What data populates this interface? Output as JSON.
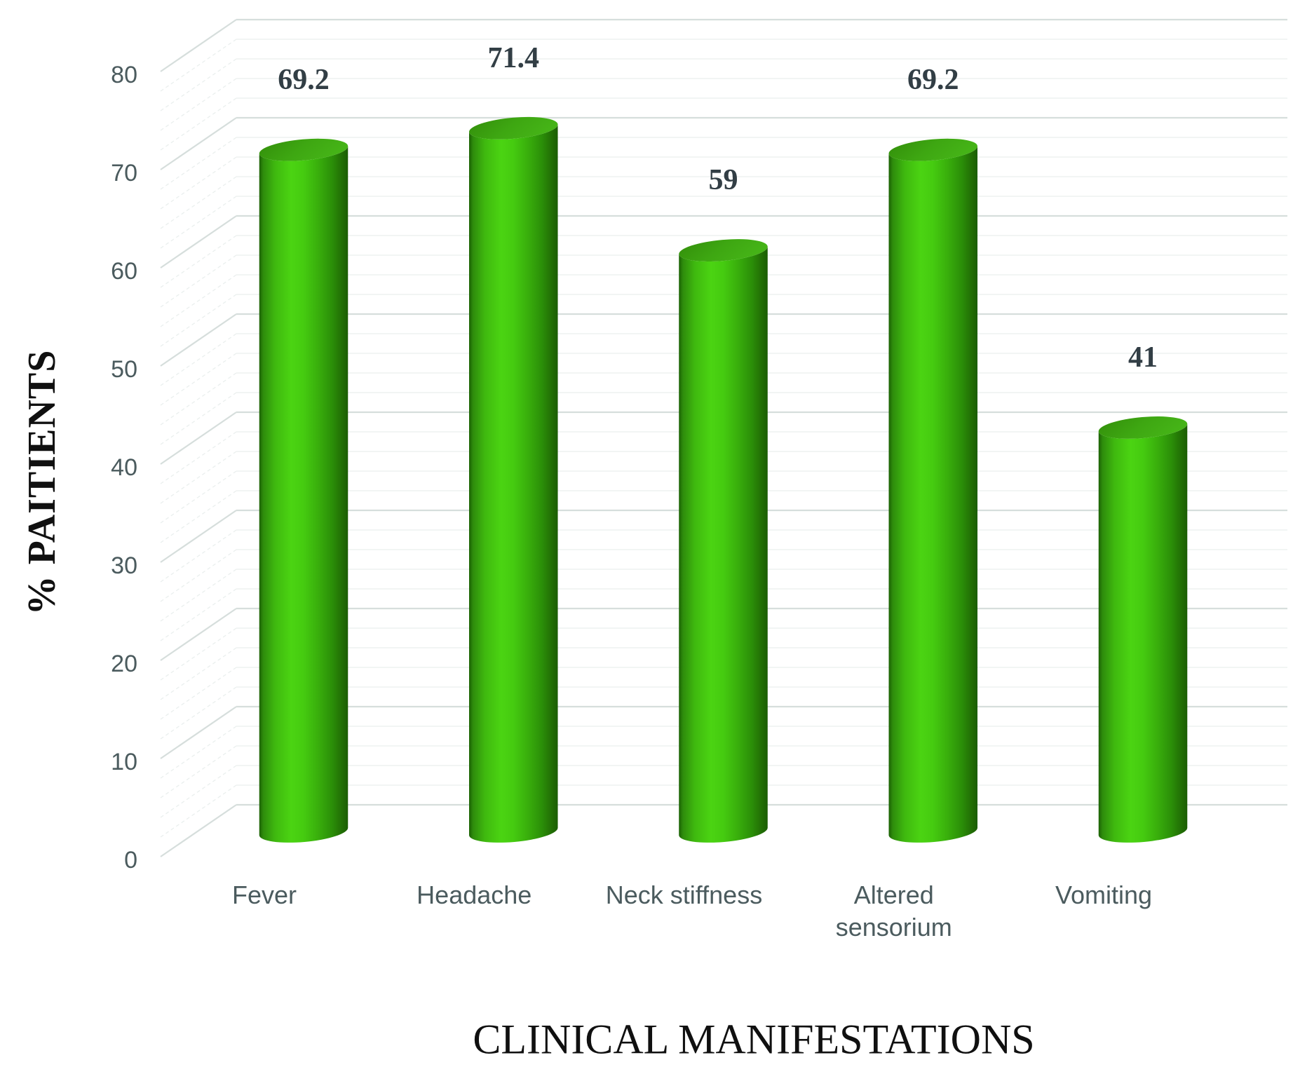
{
  "chart_data": {
    "type": "bar",
    "subtype": "3d-cylinder-vertical",
    "title": "",
    "xlabel": "CLINICAL MANIFESTATIONS",
    "ylabel": "% PAITIENTS",
    "categories": [
      "Fever",
      "Headache",
      "Neck stiffness",
      "Altered sensorium",
      "Vomiting"
    ],
    "category_display": [
      "Fever",
      "Headache",
      "Neck stiffness",
      "Altered\nsensorium",
      "Vomiting"
    ],
    "values": [
      69.2,
      71.4,
      59,
      69.2,
      41
    ],
    "data_labels": [
      "69.2",
      "71.4",
      "59",
      "69.2",
      "41"
    ],
    "ylim": [
      0,
      80
    ],
    "y_major_ticks": [
      0,
      10,
      20,
      30,
      40,
      50,
      60,
      70,
      80
    ],
    "y_minor_step": 2,
    "grid": "horizontal major + minor on 3D back wall",
    "legend": "none",
    "bar_color": "#3fbe12"
  },
  "colors": {
    "background": "#ffffff",
    "bar_bright": "#4bd412",
    "bar_dark_edge": "#1b6104",
    "bar_top_face": "#3ea712",
    "grid_major": "#d6dedc",
    "grid_minor": "#eaefee",
    "tick_text": "#4b5b5e",
    "category_text": "#4b5b5e",
    "data_label_text": "#323e45",
    "title_text": "#101010"
  }
}
